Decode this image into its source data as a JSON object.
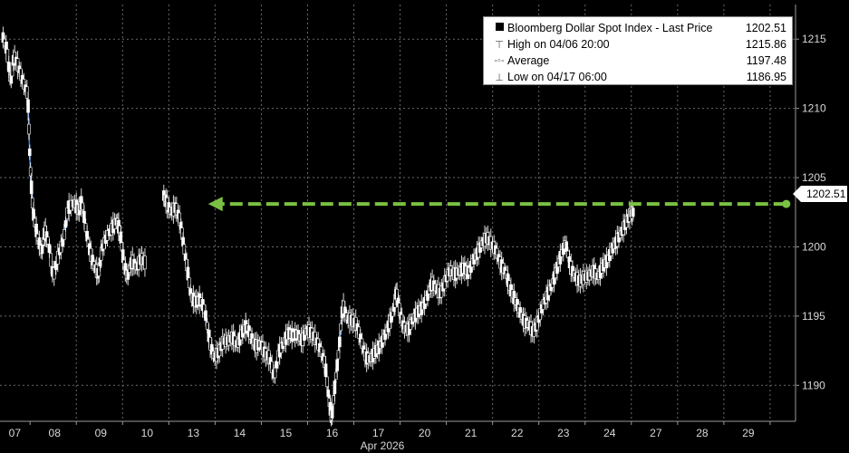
{
  "chart_data": {
    "type": "line",
    "series_name": "Bloomberg Dollar Spot Index - Last Price",
    "month_label": "Apr 2026",
    "categories": [
      "07",
      "08",
      "09",
      "10",
      "13",
      "14",
      "15",
      "16",
      "17",
      "20",
      "21",
      "22",
      "23",
      "24",
      "27",
      "28",
      "29"
    ],
    "y_ticks": [
      1190,
      1195,
      1200,
      1205,
      1210,
      1215
    ],
    "ylim": [
      1187.4,
      1217.5
    ],
    "grid": true,
    "legend_position": "top-right",
    "last_price_label": "1202.51",
    "legend": [
      {
        "label": "Bloomberg Dollar Spot Index - Last Price",
        "value": "1202.51",
        "symbol": "square"
      },
      {
        "label": "High on 04/06 20:00",
        "value": "1215.86",
        "symbol": "high"
      },
      {
        "label": "Average",
        "value": "1197.48",
        "symbol": "avg"
      },
      {
        "label": "Low on 04/17 06:00",
        "value": "1186.95",
        "symbol": "low"
      }
    ],
    "annotation": {
      "type": "dashed-arrow",
      "color": "#7ac143",
      "x_start": 16.35,
      "x_end": 3.85,
      "y": 1203.1
    },
    "line_color": "#3a7bd5",
    "points": [
      [
        -0.6,
        1215.3
      ],
      [
        -0.5,
        1214.2
      ],
      [
        -0.42,
        1211.8
      ],
      [
        -0.35,
        1213.8
      ],
      [
        -0.25,
        1213.0
      ],
      [
        -0.15,
        1211.9
      ],
      [
        -0.05,
        1211.0
      ],
      [
        0.0,
        1206.0
      ],
      [
        0.06,
        1202.6
      ],
      [
        0.15,
        1200.9
      ],
      [
        0.25,
        1199.6
      ],
      [
        0.32,
        1201.2
      ],
      [
        0.4,
        1200.3
      ],
      [
        0.5,
        1197.8
      ],
      [
        0.62,
        1199.5
      ],
      [
        0.72,
        1200.5
      ],
      [
        0.82,
        1202.8
      ],
      [
        0.95,
        1203.2
      ],
      [
        1.05,
        1202.6
      ],
      [
        1.12,
        1203.3
      ],
      [
        1.22,
        1201.0
      ],
      [
        1.3,
        1199.6
      ],
      [
        1.4,
        1198.5
      ],
      [
        1.48,
        1198.0
      ],
      [
        1.55,
        1199.8
      ],
      [
        1.65,
        1200.7
      ],
      [
        1.78,
        1201.4
      ],
      [
        1.88,
        1201.9
      ],
      [
        1.95,
        1201.0
      ],
      [
        2.02,
        1199.0
      ],
      [
        2.1,
        1197.8
      ],
      [
        2.2,
        1199.0
      ],
      [
        2.3,
        1198.5
      ],
      [
        2.4,
        1199.2
      ],
      [
        2.5,
        1198.8
      ],
      [
        2.88,
        1203.8
      ],
      [
        2.95,
        1203.2
      ],
      [
        3.05,
        1202.5
      ],
      [
        3.15,
        1202.9
      ],
      [
        3.25,
        1201.8
      ],
      [
        3.32,
        1200.1
      ],
      [
        3.4,
        1198.4
      ],
      [
        3.48,
        1196.4
      ],
      [
        3.58,
        1196.0
      ],
      [
        3.68,
        1196.2
      ],
      [
        3.78,
        1195.4
      ],
      [
        3.88,
        1193.2
      ],
      [
        3.98,
        1192.0
      ],
      [
        4.08,
        1192.4
      ],
      [
        4.18,
        1193.2
      ],
      [
        4.28,
        1193.2
      ],
      [
        4.38,
        1193.5
      ],
      [
        4.48,
        1192.9
      ],
      [
        4.58,
        1193.8
      ],
      [
        4.68,
        1194.3
      ],
      [
        4.78,
        1193.5
      ],
      [
        4.88,
        1192.8
      ],
      [
        4.98,
        1193.0
      ],
      [
        5.08,
        1192.3
      ],
      [
        5.18,
        1192.0
      ],
      [
        5.28,
        1190.6
      ],
      [
        5.38,
        1192.4
      ],
      [
        5.48,
        1193.0
      ],
      [
        5.58,
        1193.8
      ],
      [
        5.68,
        1193.6
      ],
      [
        5.78,
        1193.7
      ],
      [
        5.88,
        1193.2
      ],
      [
        5.98,
        1194.0
      ],
      [
        6.08,
        1193.8
      ],
      [
        6.18,
        1193.3
      ],
      [
        6.28,
        1192.6
      ],
      [
        6.38,
        1191.5
      ],
      [
        6.46,
        1189.0
      ],
      [
        6.52,
        1187.6
      ],
      [
        6.6,
        1190.3
      ],
      [
        6.68,
        1192.6
      ],
      [
        6.76,
        1195.8
      ],
      [
        6.86,
        1194.8
      ],
      [
        6.96,
        1194.7
      ],
      [
        7.06,
        1194.4
      ],
      [
        7.16,
        1193.2
      ],
      [
        7.26,
        1192.0
      ],
      [
        7.36,
        1191.9
      ],
      [
        7.46,
        1192.4
      ],
      [
        7.56,
        1192.8
      ],
      [
        7.66,
        1193.5
      ],
      [
        7.76,
        1194.4
      ],
      [
        7.86,
        1195.4
      ],
      [
        7.92,
        1196.8
      ],
      [
        8.0,
        1195.2
      ],
      [
        8.08,
        1194.2
      ],
      [
        8.18,
        1194.0
      ],
      [
        8.28,
        1194.8
      ],
      [
        8.38,
        1195.3
      ],
      [
        8.48,
        1195.6
      ],
      [
        8.58,
        1196.3
      ],
      [
        8.68,
        1197.4
      ],
      [
        8.78,
        1197.0
      ],
      [
        8.88,
        1196.6
      ],
      [
        8.98,
        1197.6
      ],
      [
        9.08,
        1198.3
      ],
      [
        9.18,
        1198.0
      ],
      [
        9.28,
        1198.2
      ],
      [
        9.38,
        1198.5
      ],
      [
        9.48,
        1198.1
      ],
      [
        9.58,
        1199.0
      ],
      [
        9.68,
        1199.6
      ],
      [
        9.78,
        1200.3
      ],
      [
        9.88,
        1200.7
      ],
      [
        9.98,
        1200.2
      ],
      [
        10.08,
        1199.7
      ],
      [
        10.18,
        1198.7
      ],
      [
        10.28,
        1198.2
      ],
      [
        10.38,
        1197.0
      ],
      [
        10.48,
        1196.2
      ],
      [
        10.58,
        1195.4
      ],
      [
        10.68,
        1194.6
      ],
      [
        10.78,
        1194.4
      ],
      [
        10.88,
        1193.8
      ],
      [
        10.98,
        1194.6
      ],
      [
        11.08,
        1195.7
      ],
      [
        11.18,
        1196.5
      ],
      [
        11.28,
        1197.2
      ],
      [
        11.38,
        1198.3
      ],
      [
        11.48,
        1199.4
      ],
      [
        11.58,
        1200.3
      ],
      [
        11.68,
        1198.6
      ],
      [
        11.78,
        1197.9
      ],
      [
        11.88,
        1197.5
      ],
      [
        11.98,
        1197.8
      ],
      [
        12.08,
        1197.9
      ],
      [
        12.18,
        1198.3
      ],
      [
        12.28,
        1197.8
      ],
      [
        12.38,
        1198.6
      ],
      [
        12.48,
        1199.0
      ],
      [
        12.58,
        1199.8
      ],
      [
        12.68,
        1200.4
      ],
      [
        12.78,
        1201.0
      ],
      [
        12.88,
        1201.7
      ],
      [
        12.98,
        1202.4
      ],
      [
        13.05,
        1202.51
      ]
    ]
  }
}
